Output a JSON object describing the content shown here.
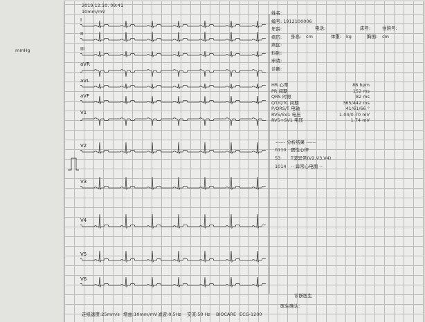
{
  "header": {
    "datetime": "2019.12.10. 09:41",
    "gain": "10mm/mV"
  },
  "margin_note": "mmHg",
  "leads": [
    "I",
    "II",
    "III",
    "aVR",
    "aVL",
    "aVF",
    "V1",
    "V2",
    "V3",
    "V4",
    "V5",
    "V6"
  ],
  "patient": {
    "fields": [
      "姓名:",
      "编号:  1912100006",
      "年龄:",
      "病历:",
      "病区:",
      "科别:",
      "申请:",
      "诊断:"
    ],
    "extra": [
      "电话:",
      "床号:",
      "住院号:",
      "身高:",
      "cm",
      "体重:",
      "kg",
      "胸围:",
      "cm"
    ]
  },
  "measurements": [
    {
      "label": "HR  心率",
      "value": "86 bpm"
    },
    {
      "label": "PR  间期",
      "value": "152 ms"
    },
    {
      "label": "QRS  时限",
      "value": "82 ms"
    },
    {
      "label": "QT/QTC  间期",
      "value": "365/442 ms"
    },
    {
      "label": "P/QRS/T  电轴",
      "value": "41/61/66 °"
    },
    {
      "label": "RV5/SV1  电压",
      "value": "1.04/0.70 mV"
    },
    {
      "label": "RV5+SV1  电压",
      "value": "1.74 mV"
    }
  ],
  "analysis": {
    "title": "------  分析结果  ------",
    "items": [
      {
        "code": "0110",
        "text": "窦性心律"
      },
      {
        "code": "53",
        "text": "T波异常(V2,V3,V4)"
      },
      {
        "code": "1014",
        "text": "-- 异常心电图 --"
      }
    ]
  },
  "signature": {
    "doctor": "诊断医生",
    "confirm": "医生确认:"
  },
  "footer": [
    "走纸速度:25mm/s",
    "增益:10mm/mV",
    "滤波:0.5Hz",
    "交流:50 Hz",
    "BIOCARE",
    "ECG-1200"
  ]
}
